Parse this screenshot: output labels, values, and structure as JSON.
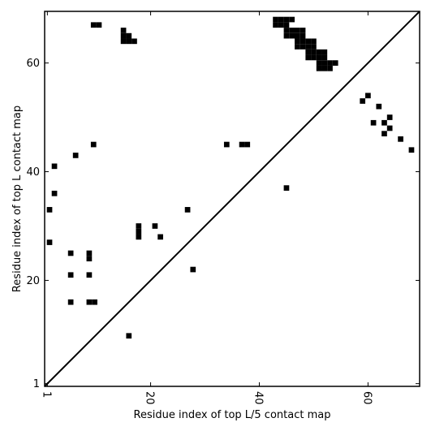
{
  "chart_data": {
    "type": "scatter",
    "title": "",
    "xlabel": "Residue index of top L/5 contact map",
    "ylabel": "Residue index of top L contact map",
    "xlim": [
      0.5,
      69.5
    ],
    "ylim": [
      0.5,
      69.5
    ],
    "xticks": [
      1,
      20,
      40,
      60
    ],
    "yticks": [
      1,
      20,
      40,
      60
    ],
    "grid": false,
    "diagonal": true,
    "series": [
      {
        "marker": "square",
        "color": "#000000",
        "points": [
          [
            9.5,
            67
          ],
          [
            10.5,
            67
          ],
          [
            15,
            66
          ],
          [
            15,
            65
          ],
          [
            16,
            65
          ],
          [
            15,
            64
          ],
          [
            16,
            64
          ],
          [
            17,
            64
          ],
          [
            43,
            68
          ],
          [
            44,
            68
          ],
          [
            45,
            68
          ],
          [
            46,
            68
          ],
          [
            43,
            67
          ],
          [
            44,
            67
          ],
          [
            45,
            67
          ],
          [
            45,
            66
          ],
          [
            46,
            66
          ],
          [
            47,
            66
          ],
          [
            48,
            66
          ],
          [
            45,
            65
          ],
          [
            46,
            65
          ],
          [
            47,
            65
          ],
          [
            48,
            65
          ],
          [
            47,
            64
          ],
          [
            48,
            64
          ],
          [
            49,
            64
          ],
          [
            50,
            64
          ],
          [
            47,
            63
          ],
          [
            48,
            63
          ],
          [
            49,
            63
          ],
          [
            50,
            63
          ],
          [
            49,
            62
          ],
          [
            50,
            62
          ],
          [
            51,
            62
          ],
          [
            52,
            62
          ],
          [
            49,
            61
          ],
          [
            50,
            61
          ],
          [
            51,
            61
          ],
          [
            52,
            61
          ],
          [
            51,
            60
          ],
          [
            52,
            60
          ],
          [
            53,
            60
          ],
          [
            54,
            60
          ],
          [
            51,
            59
          ],
          [
            52,
            59
          ],
          [
            53,
            59
          ],
          [
            9.5,
            45
          ],
          [
            6.2,
            43
          ],
          [
            2.3,
            41
          ],
          [
            2.3,
            36
          ],
          [
            1.4,
            33
          ],
          [
            1.4,
            27
          ],
          [
            5.3,
            25
          ],
          [
            8.7,
            25
          ],
          [
            8.7,
            24
          ],
          [
            5.3,
            21
          ],
          [
            8.7,
            21
          ],
          [
            5.3,
            16
          ],
          [
            8.7,
            16
          ],
          [
            9.7,
            16
          ],
          [
            16,
            9.8
          ],
          [
            17.8,
            30
          ],
          [
            17.8,
            29
          ],
          [
            17.8,
            28
          ],
          [
            20.8,
            30
          ],
          [
            21.8,
            28
          ],
          [
            26.8,
            33
          ],
          [
            27.8,
            22
          ],
          [
            34,
            45
          ],
          [
            36.8,
            45
          ],
          [
            37.8,
            45
          ],
          [
            45,
            37
          ],
          [
            59,
            53
          ],
          [
            60,
            54
          ],
          [
            61,
            49
          ],
          [
            62,
            52
          ],
          [
            63,
            49
          ],
          [
            63,
            47
          ],
          [
            64,
            50
          ],
          [
            64,
            48
          ],
          [
            66,
            46
          ],
          [
            68,
            44
          ]
        ]
      }
    ]
  }
}
